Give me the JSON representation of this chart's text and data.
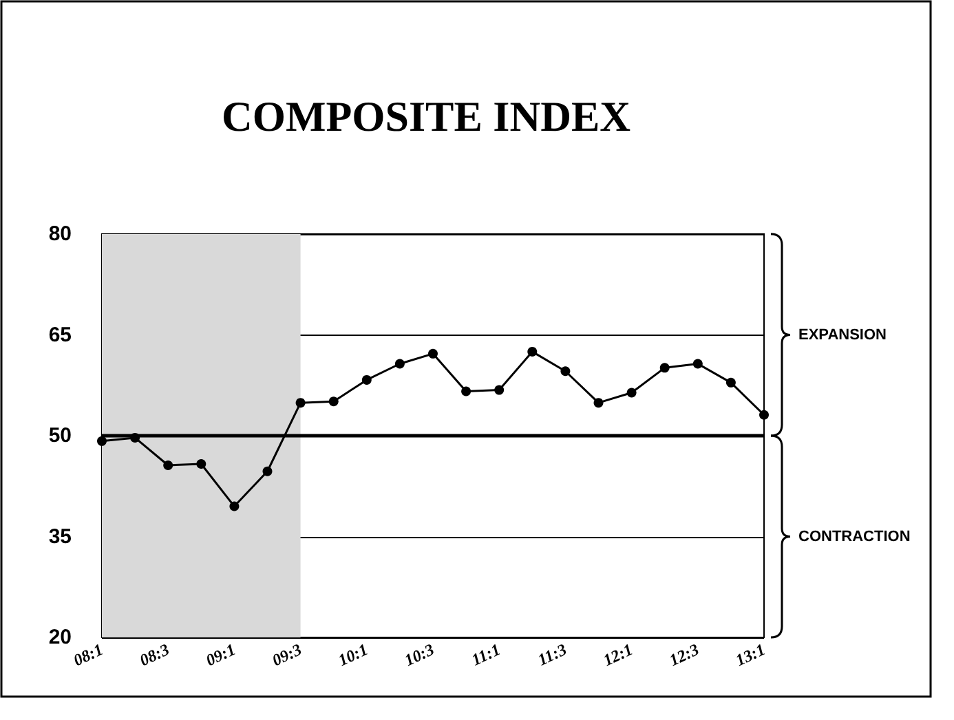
{
  "chart_data": {
    "type": "line",
    "title": "COMPOSITE INDEX",
    "categories": [
      "08:1",
      null,
      "08:3",
      null,
      "09:1",
      null,
      "09:3",
      null,
      "10:1",
      null,
      "10:3",
      null,
      "11:1",
      null,
      "11:3",
      null,
      "12:1",
      null,
      "12:3",
      null,
      "13:1"
    ],
    "series": [
      {
        "color": "#000000",
        "values": [
          49.2,
          49.7,
          45.6,
          45.8,
          39.5,
          44.7,
          54.9,
          55.1,
          58.3,
          60.7,
          62.2,
          56.6,
          56.8,
          62.5,
          59.6,
          54.9,
          56.4,
          60.1,
          60.7,
          57.9,
          53.1
        ]
      }
    ],
    "ylim": [
      20,
      80
    ],
    "yticks": [
      20,
      35,
      50,
      65,
      80
    ],
    "grid": "y",
    "marker": "circle",
    "line_style": "solid",
    "ref_lines": [
      {
        "axis": "y",
        "value": 50,
        "color": "#000000"
      }
    ],
    "bands": [
      {
        "axis": "x",
        "from": "08:1",
        "to": "09:3",
        "color": "#d9d9d9"
      }
    ],
    "annotations": [
      "EXPANSION",
      "CONTRACTION"
    ]
  }
}
